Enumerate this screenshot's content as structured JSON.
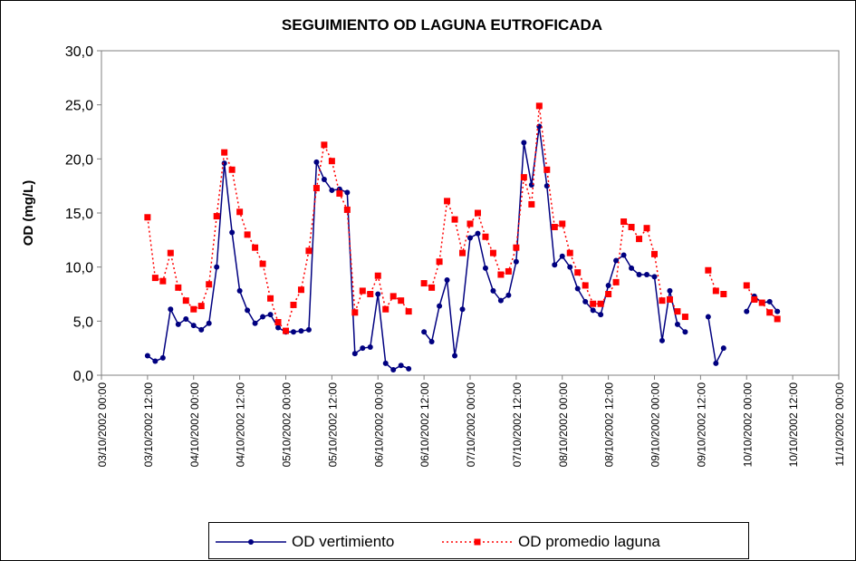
{
  "chart_data": {
    "type": "line",
    "title": "SEGUIMIENTO OD LAGUNA EUTROFICADA",
    "y_label": "OD (mg/L)",
    "x": [
      12,
      14,
      16,
      18,
      20,
      22,
      24,
      26,
      28,
      30,
      32,
      34,
      36,
      38,
      40,
      42,
      44,
      46,
      48,
      50,
      52,
      54,
      56,
      58,
      60,
      62,
      64,
      66,
      68,
      70,
      72,
      74,
      76,
      78,
      80,
      82,
      84,
      86,
      88,
      90,
      92,
      94,
      96,
      98,
      100,
      102,
      104,
      106,
      108,
      110,
      112,
      114,
      116,
      118,
      120,
      122,
      124,
      126,
      128,
      130,
      132,
      134,
      136,
      138,
      140,
      142,
      144,
      146,
      148,
      150,
      152,
      154,
      156,
      158,
      160,
      162,
      164,
      166,
      168,
      170,
      172,
      174,
      176
    ],
    "series": [
      {
        "name": "OD vertimiento",
        "color": "#000080",
        "style": "solid",
        "marker": "circle",
        "values": [
          1.8,
          1.3,
          1.6,
          6.1,
          4.7,
          5.2,
          4.6,
          4.2,
          4.8,
          10.0,
          19.6,
          13.2,
          7.8,
          6.0,
          4.8,
          5.4,
          5.6,
          4.4,
          4.0,
          4.0,
          4.1,
          4.2,
          19.7,
          18.1,
          17.1,
          17.2,
          16.9,
          2.0,
          2.5,
          2.6,
          7.5,
          1.1,
          0.5,
          0.9,
          0.6,
          null,
          4.0,
          3.1,
          6.4,
          8.8,
          1.8,
          6.1,
          12.7,
          13.1,
          9.9,
          7.8,
          6.9,
          7.4,
          10.5,
          21.5,
          17.6,
          23.0,
          17.5,
          10.2,
          11.0,
          10.0,
          8.0,
          6.8,
          6.0,
          5.6,
          8.3,
          10.6,
          11.1,
          9.9,
          9.3,
          9.3,
          9.1,
          3.2,
          7.8,
          4.7,
          4.0,
          null,
          null,
          5.4,
          1.1,
          2.5,
          null,
          null,
          5.9,
          7.3,
          6.7,
          6.8,
          5.9
        ]
      },
      {
        "name": "OD promedio laguna",
        "color": "#ff0000",
        "style": "dotted",
        "marker": "square",
        "values": [
          14.6,
          9.0,
          8.7,
          11.3,
          8.1,
          6.9,
          6.1,
          6.4,
          8.4,
          14.7,
          20.6,
          19.0,
          15.1,
          13.0,
          11.8,
          10.3,
          7.1,
          4.9,
          4.1,
          6.5,
          7.9,
          11.5,
          17.3,
          21.3,
          19.8,
          16.8,
          15.3,
          5.8,
          7.8,
          7.5,
          9.2,
          6.1,
          7.3,
          6.9,
          5.9,
          null,
          8.5,
          8.1,
          10.5,
          16.1,
          14.4,
          11.3,
          14.0,
          15.0,
          12.8,
          11.3,
          9.3,
          9.6,
          11.8,
          18.3,
          15.8,
          24.9,
          19.0,
          13.7,
          14.0,
          11.3,
          9.5,
          8.3,
          6.6,
          6.6,
          7.5,
          8.6,
          14.2,
          13.7,
          12.6,
          13.6,
          11.2,
          6.9,
          7.0,
          5.9,
          5.4,
          null,
          null,
          9.7,
          7.8,
          7.5,
          null,
          null,
          8.3,
          7.0,
          6.7,
          5.8,
          5.2
        ]
      }
    ],
    "xlim": [
      0,
      192
    ],
    "xticks": [
      {
        "value": 0,
        "label": "03/10/2002 00:00"
      },
      {
        "value": 12,
        "label": "03/10/2002 12:00"
      },
      {
        "value": 24,
        "label": "04/10/2002 00:00"
      },
      {
        "value": 36,
        "label": "04/10/2002 12:00"
      },
      {
        "value": 48,
        "label": "05/10/2002 00:00"
      },
      {
        "value": 60,
        "label": "05/10/2002 12:00"
      },
      {
        "value": 72,
        "label": "06/10/2002 00:00"
      },
      {
        "value": 84,
        "label": "06/10/2002 12:00"
      },
      {
        "value": 96,
        "label": "07/10/2002 00:00"
      },
      {
        "value": 108,
        "label": "07/10/2002 12:00"
      },
      {
        "value": 120,
        "label": "08/10/2002 00:00"
      },
      {
        "value": 132,
        "label": "08/10/2002 12:00"
      },
      {
        "value": 144,
        "label": "09/10/2002 00:00"
      },
      {
        "value": 156,
        "label": "09/10/2002 12:00"
      },
      {
        "value": 168,
        "label": "10/10/2002 00:00"
      },
      {
        "value": 180,
        "label": "10/10/2002 12:00"
      },
      {
        "value": 192,
        "label": "11/10/2002 00:00"
      }
    ],
    "ylim": [
      0,
      30
    ],
    "yticks": [
      {
        "value": 0,
        "label": "0,0"
      },
      {
        "value": 5,
        "label": "5,0"
      },
      {
        "value": 10,
        "label": "10,0"
      },
      {
        "value": 15,
        "label": "15,0"
      },
      {
        "value": 20,
        "label": "20,0"
      },
      {
        "value": 25,
        "label": "25,0"
      },
      {
        "value": 30,
        "label": "30,0"
      }
    ],
    "legend": "bottom"
  }
}
